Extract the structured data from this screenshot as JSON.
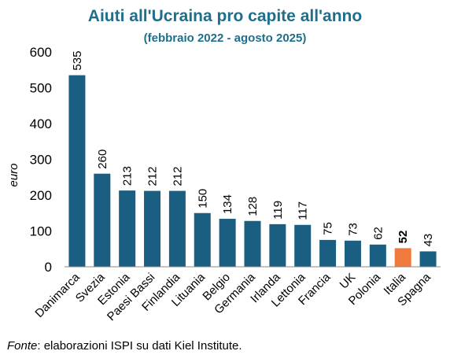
{
  "header": {
    "title": "Aiuti all'Ucraina pro capite all'anno",
    "subtitle": "(febbraio 2022 - agosto 2025)"
  },
  "footer": {
    "source_label": "Fonte",
    "source_text": ": elaborazioni ISPI su dati Kiel Institute."
  },
  "colors": {
    "bar": "#1a5f82",
    "highlight": "#f07a3d"
  },
  "chart_data": {
    "type": "bar",
    "title": "Aiuti all'Ucraina pro capite all'anno",
    "subtitle": "(febbraio 2022 - agosto 2025)",
    "ylabel": "euro",
    "xlabel": "",
    "ylim": [
      0,
      600
    ],
    "yticks": [
      0,
      100,
      200,
      300,
      400,
      500,
      600
    ],
    "grid": false,
    "legend": "none",
    "categories": [
      "Danimarca",
      "Svezia",
      "Estonia",
      "Paesi Bassi",
      "Finlandia",
      "Lituania",
      "Belgio",
      "Germania",
      "Irlanda",
      "Lettonia",
      "Francia",
      "UK",
      "Polonia",
      "Italia",
      "Spagna"
    ],
    "values": [
      535,
      260,
      213,
      212,
      212,
      150,
      134,
      128,
      119,
      117,
      75,
      73,
      62,
      52,
      43
    ],
    "highlighted_category": "Italia"
  }
}
